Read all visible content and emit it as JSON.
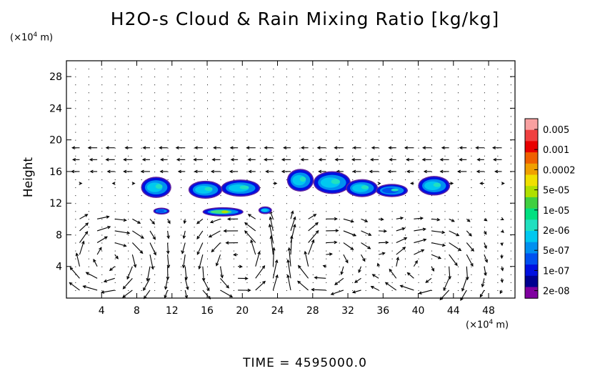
{
  "title": "H2O-s Cloud & Rain Mixing Ratio [kg/kg]",
  "y_unit": {
    "base": "(×10",
    "exp": "4",
    "tail": " m)"
  },
  "x_unit": {
    "base": "(×10",
    "exp": "4",
    "tail": " m)"
  },
  "time_label": "TIME = 4595000.0",
  "chart_data": {
    "type": "heatmap",
    "title": "H2O-s Cloud & Rain Mixing Ratio [kg/kg]",
    "xlabel": "(×10^4 m)",
    "ylabel": "Height",
    "ylabel_unit": "(×10^4 m)",
    "xlim": [
      0,
      51
    ],
    "ylim": [
      0,
      30
    ],
    "x_ticks": [
      4,
      8,
      12,
      16,
      20,
      24,
      28,
      32,
      36,
      40,
      44,
      48
    ],
    "y_ticks": [
      4,
      8,
      12,
      16,
      20,
      24,
      28
    ],
    "colorbar": {
      "labels": [
        "0.005",
        "0.001",
        "0.0002",
        "5e-05",
        "1e-05",
        "2e-06",
        "5e-07",
        "1e-07",
        "2e-08"
      ],
      "colors": [
        "#f8a0a0",
        "#f04040",
        "#e80000",
        "#f06000",
        "#f0a000",
        "#f0e000",
        "#b0e000",
        "#40d040",
        "#00e080",
        "#20e0c0",
        "#00c8f0",
        "#0090f0",
        "#0050f0",
        "#0010e0",
        "#000090",
        "#8000a0"
      ]
    },
    "cloud_patches": [
      {
        "x": 10.2,
        "y": 14.0,
        "value": "5e-07",
        "w": 3.2,
        "h": 2.4
      },
      {
        "x": 15.8,
        "y": 13.7,
        "value": "5e-07",
        "w": 3.6,
        "h": 2.0
      },
      {
        "x": 19.8,
        "y": 13.9,
        "value": "5e-07",
        "w": 4.2,
        "h": 1.9
      },
      {
        "x": 26.6,
        "y": 14.9,
        "value": "5e-07",
        "w": 2.8,
        "h": 2.6
      },
      {
        "x": 30.2,
        "y": 14.6,
        "value": "5e-07",
        "w": 4.0,
        "h": 2.6
      },
      {
        "x": 33.6,
        "y": 13.9,
        "value": "5e-07",
        "w": 3.4,
        "h": 2.0
      },
      {
        "x": 37.0,
        "y": 13.6,
        "value": "1e-07",
        "w": 3.4,
        "h": 1.4
      },
      {
        "x": 41.8,
        "y": 14.2,
        "value": "5e-07",
        "w": 3.4,
        "h": 2.2
      },
      {
        "x": 10.8,
        "y": 11.0,
        "value": "1e-07",
        "w": 1.6,
        "h": 0.6
      },
      {
        "x": 17.8,
        "y": 10.9,
        "value": "2e-06",
        "w": 4.4,
        "h": 0.9
      },
      {
        "x": 22.6,
        "y": 11.1,
        "value": "5e-07",
        "w": 1.3,
        "h": 0.7
      }
    ],
    "circulation_cells": [
      {
        "x": 4.8,
        "y": 4.8,
        "direction": "counterclockwise"
      },
      {
        "x": 20.0,
        "y": 4.6,
        "direction": "clockwise"
      },
      {
        "x": 29.0,
        "y": 4.6,
        "direction": "counterclockwise"
      },
      {
        "x": 40.8,
        "y": 3.6,
        "direction": "counterclockwise"
      }
    ],
    "grid": "dotted"
  }
}
